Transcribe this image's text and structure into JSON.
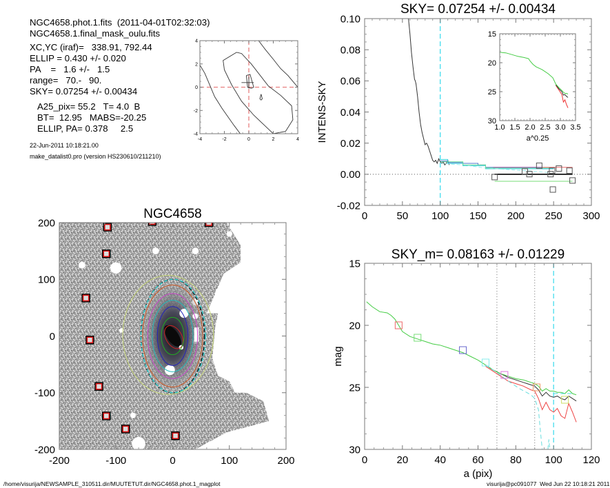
{
  "info": {
    "line1": "NGC4658.phot.1.fits  (2011-04-01T02:32:03)",
    "line2": "NGC4658.1.final_mask_oulu.fits",
    "params": [
      "XC,YC (iraf)=   338.91, 792.44",
      "ELLIP = 0.430 +/- 0.020",
      "PA    =   1.6 +/-   1.5",
      "range=   70.-   90.",
      "SKY= 0.07254 +/- 0.00434"
    ],
    "catalog": [
      "A25_pix= 55.2   T= 4.0  B",
      "BT=  12.95   MABS=-20.25",
      "ELLIP, PA= 0.378     2.5"
    ],
    "date": "22-Jun-2011 10:18:21.00",
    "program": "make_datalist0.pro (version HS230610/211210)"
  },
  "footer": {
    "path": "/home/visurija/NEWSAMPLE_310511.dir/MUUTETUT.dir/NGC4658.phot.1_magplot",
    "stamp": "visurija@pc091077  Wed Jun 22 10:18:21 2011"
  },
  "chart_data": [
    {
      "id": "center-contour",
      "type": "line",
      "title": "",
      "xlabel": "",
      "ylabel": "",
      "xlim": [
        -4,
        4
      ],
      "ylim": [
        -4,
        4
      ],
      "xticks": [
        -4,
        -2,
        0,
        2,
        4
      ],
      "yticks": [
        -4,
        -2,
        0,
        2,
        4
      ],
      "crosshair": {
        "x": 0,
        "y": 0,
        "color": "#e88080",
        "style": "dashed"
      },
      "series": [
        {
          "name": "contour-outer-left",
          "color": "#333333",
          "x": [
            -4,
            -3.6,
            -3.2,
            -2.8,
            -2.2,
            -1.6,
            -1.2,
            -0.7
          ],
          "y": [
            1.9,
            1.2,
            0.2,
            -0.8,
            -1.8,
            -2.7,
            -3.3,
            -4.0
          ]
        },
        {
          "name": "contour-outer-right",
          "color": "#333333",
          "x": [
            0.8,
            1.3,
            2.0,
            2.6,
            3.2,
            3.6,
            4.0
          ],
          "y": [
            4.0,
            3.3,
            2.4,
            1.6,
            1.0,
            0.5,
            0.0
          ]
        },
        {
          "name": "contour-middle",
          "color": "#333333",
          "x": [
            -1.0,
            -2.1,
            -2.0,
            -1.4,
            -0.6,
            0.4,
            1.3,
            2.0,
            3.0,
            3.6,
            3.5,
            2.6,
            1.6,
            0.2,
            -0.6,
            -1.0
          ],
          "y": [
            3.0,
            2.3,
            1.5,
            0.2,
            -1.2,
            -2.4,
            -3.3,
            -4.0,
            -3.8,
            -2.8,
            -1.6,
            -0.7,
            0.1,
            2.0,
            2.9,
            3.0
          ]
        },
        {
          "name": "contour-inner",
          "color": "#333333",
          "x": [
            -0.2,
            0.1,
            0.4,
            0.2,
            -0.1,
            -0.2
          ],
          "y": [
            1.0,
            1.1,
            0.0,
            -0.1,
            0.0,
            1.0
          ]
        },
        {
          "name": "contour-dot",
          "color": "#333333",
          "x": [
            1.0,
            1.1,
            1.0,
            0.9,
            1.0
          ],
          "y": [
            -0.6,
            -1.0,
            -1.1,
            -1.0,
            -0.6
          ]
        },
        {
          "name": "center-cross-h",
          "color": "#333333",
          "x": [
            -0.6,
            0.4
          ],
          "y": [
            0.4,
            0.4
          ]
        },
        {
          "name": "center-cross-v",
          "color": "#333333",
          "x": [
            0.0,
            0.0
          ],
          "y": [
            0.9,
            -0.1
          ]
        }
      ]
    },
    {
      "id": "galaxy-image",
      "type": "scatter",
      "title": "NGC4658",
      "xlabel": "",
      "ylabel": "",
      "xlim": [
        -200,
        200
      ],
      "ylim": [
        -200,
        200
      ],
      "xticks": [
        -200,
        -100,
        0,
        100,
        200
      ],
      "yticks": [
        -200,
        -100,
        0,
        100,
        200
      ],
      "background": "#9a9a9a",
      "ellipses": [
        {
          "name": "ellipse-red",
          "color": "#cc2222",
          "a": 22,
          "b": 14,
          "dashed": false,
          "cx": 2,
          "cy": -2
        },
        {
          "name": "ellipse-green",
          "color": "#22aa22",
          "a": 33,
          "b": 20,
          "dashed": false,
          "cx": 0,
          "cy": 0
        },
        {
          "name": "ellipse-blue",
          "color": "#2222bb",
          "a": 52,
          "b": 27,
          "dashed": false,
          "cx": 0,
          "cy": 0
        },
        {
          "name": "ellipse-cyan",
          "color": "#22bbbb",
          "a": 63,
          "b": 36,
          "dashed": false,
          "cx": 0,
          "cy": 0
        },
        {
          "name": "ellipse-magenta",
          "color": "#cc44cc",
          "a": 75,
          "b": 44,
          "dashed": false,
          "cx": 0,
          "cy": 0
        },
        {
          "name": "ellipse-orange",
          "color": "#cc5522",
          "a": 90,
          "b": 53,
          "dashed": false,
          "cx": 0,
          "cy": 0
        },
        {
          "name": "ellipse-black-dashed",
          "color": "#111111",
          "a": 100,
          "b": 56,
          "dashed": true,
          "cx": 0,
          "cy": 0
        },
        {
          "name": "ellipse-cyan-dashed",
          "color": "#33cccc",
          "a": 100,
          "b": 57,
          "dashed": true,
          "cx": 1,
          "cy": 0
        },
        {
          "name": "ellipse-yellowgreen",
          "color": "#c8d878",
          "a": 105,
          "b": 80,
          "dashed": false,
          "cx": -8,
          "cy": 2
        }
      ],
      "markers": [
        {
          "x": -115,
          "y": 192
        },
        {
          "x": -117,
          "y": 145
        },
        {
          "x": -153,
          "y": 67
        },
        {
          "x": -146,
          "y": -7
        },
        {
          "x": -130,
          "y": -89
        },
        {
          "x": -117,
          "y": -141
        },
        {
          "x": -83,
          "y": -164
        },
        {
          "x": 5,
          "y": -176
        },
        {
          "x": -36,
          "y": 202
        },
        {
          "x": 64,
          "y": 200
        }
      ]
    },
    {
      "id": "sky-profile",
      "type": "line",
      "title": "SKY= 0.07254 +/- 0.00434",
      "xlabel": "",
      "ylabel": "INTENS-SKY",
      "xlim": [
        0,
        300
      ],
      "ylim": [
        -0.02,
        0.1
      ],
      "xticks": [
        0,
        50,
        100,
        150,
        200,
        250,
        300
      ],
      "ytick_labels": [
        "-0.02",
        "0.00",
        "0.02",
        "0.04",
        "0.06",
        "0.08",
        "0.10"
      ],
      "yticks": [
        -0.02,
        0.0,
        0.02,
        0.04,
        0.06,
        0.08,
        0.1
      ],
      "vline": {
        "x": 100,
        "color": "#44ddee",
        "style": "dashed"
      },
      "hline": {
        "y": 0,
        "color": "#555555",
        "style": "dotted"
      },
      "series": [
        {
          "name": "intensity",
          "color": "#333333",
          "x": [
            58,
            60,
            62,
            64,
            66,
            67,
            68,
            70,
            72,
            74,
            76,
            78,
            80,
            82,
            84,
            86,
            88,
            90,
            92,
            94,
            96,
            98,
            100,
            102,
            104,
            106,
            108,
            110,
            112
          ],
          "y": [
            0.1,
            0.09,
            0.078,
            0.069,
            0.061,
            0.06,
            0.058,
            0.05,
            0.04,
            0.032,
            0.027,
            0.023,
            0.019,
            0.02,
            0.018,
            0.015,
            0.012,
            0.009,
            0.008,
            0.009,
            0.007,
            0.01,
            0.008,
            0.007,
            0.008,
            0.006,
            0.007,
            0.009,
            0.006
          ]
        },
        {
          "name": "blue-step",
          "color": "#5577cc",
          "x": [
            100,
            110,
            110,
            130,
            130,
            150,
            150,
            160,
            160,
            235,
            235,
            250
          ],
          "y": [
            0.0085,
            0.0085,
            0.0075,
            0.0075,
            0.007,
            0.007,
            0.006,
            0.006,
            0.0045,
            0.0045,
            0.0035,
            0.0035
          ]
        },
        {
          "name": "cyan-step",
          "color": "#33ccdd",
          "x": [
            100,
            110,
            110,
            130,
            130,
            160,
            160,
            250
          ],
          "y": [
            0.0095,
            0.0095,
            0.007,
            0.007,
            0.0055,
            0.0055,
            0.0035,
            0.0035
          ]
        },
        {
          "name": "lightcyan-dashed",
          "color": "#99eeee",
          "x": [
            100,
            130,
            160,
            190,
            220,
            245
          ],
          "y": [
            0.007,
            0.006,
            0.004,
            0.003,
            0.002,
            0.001
          ]
        },
        {
          "name": "green-step",
          "color": "#66dd99",
          "x": [
            100,
            130,
            130,
            160,
            160,
            250
          ],
          "y": [
            0.008,
            0.008,
            0.006,
            0.006,
            0.004,
            0.004
          ]
        },
        {
          "name": "magenta-level",
          "color": "#aa55aa",
          "x": [
            170,
            235
          ],
          "y": [
            0.0045,
            0.0045
          ]
        },
        {
          "name": "red-level",
          "color": "#ee6666",
          "x": [
            235,
            275
          ],
          "y": [
            0.0045,
            0.0045
          ]
        },
        {
          "name": "black-level",
          "color": "#000000",
          "x": [
            172,
            275
          ],
          "y": [
            0.0,
            0.0
          ]
        },
        {
          "name": "green-level",
          "color": "#77dd77",
          "x": [
            172,
            275
          ],
          "y": [
            -0.0045,
            -0.0045
          ]
        }
      ],
      "square_markers": [
        {
          "x": 172,
          "y": -0.0018
        },
        {
          "x": 212,
          "y": 0.0018
        },
        {
          "x": 218,
          "y": 0.0001
        },
        {
          "x": 231,
          "y": 0.0055
        },
        {
          "x": 246,
          "y": 0.0001
        },
        {
          "x": 248,
          "y": 0.0023
        },
        {
          "x": 249,
          "y": -0.0098
        },
        {
          "x": 257,
          "y": 0.0037
        },
        {
          "x": 271,
          "y": 0.0023
        },
        {
          "x": 275,
          "y": -0.004
        }
      ],
      "inset": {
        "xlabel": "a^0.25",
        "xlim": [
          1.0,
          3.5
        ],
        "ylim": [
          30,
          15
        ],
        "xtick_labels": [
          "1.0",
          "1.5",
          "2.0",
          "2.5",
          "3.0",
          "3.5"
        ],
        "xticks": [
          1.0,
          1.5,
          2.0,
          2.5,
          3.0,
          3.5
        ],
        "ytick_labels": [
          "15",
          "20",
          "25",
          "30"
        ],
        "yticks": [
          15,
          20,
          25,
          30
        ],
        "series": [
          {
            "name": "inset-red",
            "color": "#ee3333",
            "x": [
              2.85,
              2.95,
              3.05,
              3.1,
              3.15,
              3.2,
              3.25
            ],
            "y": [
              23.9,
              24.7,
              25.5,
              26.8,
              26.4,
              27.2,
              27.8
            ]
          },
          {
            "name": "inset-black",
            "color": "#333333",
            "x": [
              2.85,
              2.95,
              3.05,
              3.1,
              3.15,
              3.2,
              3.25
            ],
            "y": [
              23.8,
              24.5,
              25.0,
              25.6,
              25.5,
              25.8,
              26.0
            ]
          },
          {
            "name": "inset-green",
            "color": "#44cc44",
            "x": [
              1.0,
              1.2,
              1.4,
              1.6,
              1.8,
              1.95,
              2.0,
              2.1,
              2.2,
              2.4,
              2.6,
              2.75,
              2.85,
              2.95,
              3.05,
              3.1,
              3.15,
              3.2,
              3.25
            ],
            "y": [
              18.2,
              18.3,
              18.6,
              18.9,
              19.1,
              19.3,
              19.7,
              20.3,
              20.7,
              21.2,
              21.9,
              22.6,
              23.7,
              24.3,
              24.8,
              25.1,
              25.3,
              25.3,
              25.4
            ]
          }
        ]
      }
    },
    {
      "id": "mag-profile",
      "type": "line",
      "title": "SKY_m=  0.08163 +/- 0.01229",
      "xlabel": "a (pix)",
      "ylabel": "mag",
      "xlim": [
        0,
        120
      ],
      "ylim": [
        30,
        15
      ],
      "xticks": [
        0,
        20,
        40,
        60,
        80,
        100,
        120
      ],
      "yticks": [
        15,
        20,
        25,
        30
      ],
      "vlines": [
        {
          "x": 70,
          "color": "#777777",
          "style": "dotted"
        },
        {
          "x": 90,
          "color": "#777777",
          "style": "dotted"
        },
        {
          "x": 100,
          "color": "#44ddee",
          "style": "dashed"
        }
      ],
      "series": [
        {
          "name": "mag-red",
          "color": "#ee4444",
          "x": [
            64,
            68,
            72,
            76,
            80,
            84,
            88,
            90,
            92,
            94,
            96,
            98,
            100,
            102,
            104,
            106,
            108,
            110,
            112
          ],
          "y": [
            23.3,
            23.7,
            24.1,
            24.5,
            24.7,
            24.9,
            25.2,
            25.3,
            25.9,
            26.8,
            26.2,
            26.8,
            27.0,
            26.7,
            27.3,
            27.5,
            26.3,
            27.0,
            27.8
          ]
        },
        {
          "name": "mag-black",
          "color": "#333333",
          "x": [
            64,
            68,
            72,
            76,
            80,
            84,
            88,
            90,
            92,
            94,
            96,
            98,
            100,
            102,
            104,
            106,
            108,
            110,
            112
          ],
          "y": [
            23.2,
            23.6,
            23.9,
            24.2,
            24.4,
            24.6,
            24.8,
            24.9,
            25.2,
            25.7,
            25.4,
            25.7,
            25.8,
            25.7,
            25.9,
            26.0,
            25.7,
            25.9,
            26.1
          ]
        },
        {
          "name": "mag-green",
          "color": "#44cc44",
          "x": [
            1,
            4,
            8,
            12,
            14,
            16,
            18,
            20,
            24,
            28,
            32,
            36,
            40,
            44,
            48,
            52,
            56,
            60,
            64,
            68,
            72,
            76,
            80,
            84,
            88,
            90,
            92,
            94,
            96,
            98,
            100,
            102,
            104,
            106,
            108,
            110,
            112
          ],
          "y": [
            18.1,
            18.5,
            18.9,
            19.0,
            19.2,
            19.5,
            20.0,
            20.5,
            20.9,
            21.1,
            21.3,
            21.5,
            21.6,
            21.8,
            22.0,
            22.2,
            22.5,
            22.8,
            23.2,
            23.6,
            23.9,
            24.1,
            24.3,
            24.4,
            24.6,
            24.7,
            24.9,
            25.3,
            25.1,
            25.3,
            25.3,
            25.4,
            25.4,
            25.5,
            25.2,
            25.5,
            25.6
          ]
        },
        {
          "name": "mag-cyan-dashed",
          "color": "#66dddd",
          "x": [
            64,
            70,
            76,
            82,
            88,
            90,
            92,
            93,
            94
          ],
          "y": [
            23.2,
            23.8,
            24.5,
            25.1,
            25.6,
            25.9,
            26.8,
            28.5,
            30.0
          ]
        },
        {
          "name": "mag-cyan-dashed-2",
          "color": "#66dddd",
          "x": [
            97,
            97.5,
            98
          ],
          "y": [
            30,
            29.2,
            30
          ]
        },
        {
          "name": "mag-cyan-level",
          "color": "#44dddd",
          "x": [
            100,
            110
          ],
          "y": [
            25.5,
            25.5
          ]
        }
      ],
      "square_markers": [
        {
          "x": 18,
          "y": 20.0,
          "color": "#ee6666"
        },
        {
          "x": 28,
          "y": 21.0,
          "color": "#77dd77"
        },
        {
          "x": 52,
          "y": 22.0,
          "color": "#6666cc"
        },
        {
          "x": 64,
          "y": 23.0,
          "color": "#88eeee"
        },
        {
          "x": 74,
          "y": 24.0,
          "color": "#dd77dd"
        },
        {
          "x": 91,
          "y": 25.0,
          "color": "#ee9966"
        },
        {
          "x": 106,
          "y": 26.0,
          "color": "#ccdd66"
        }
      ]
    }
  ]
}
